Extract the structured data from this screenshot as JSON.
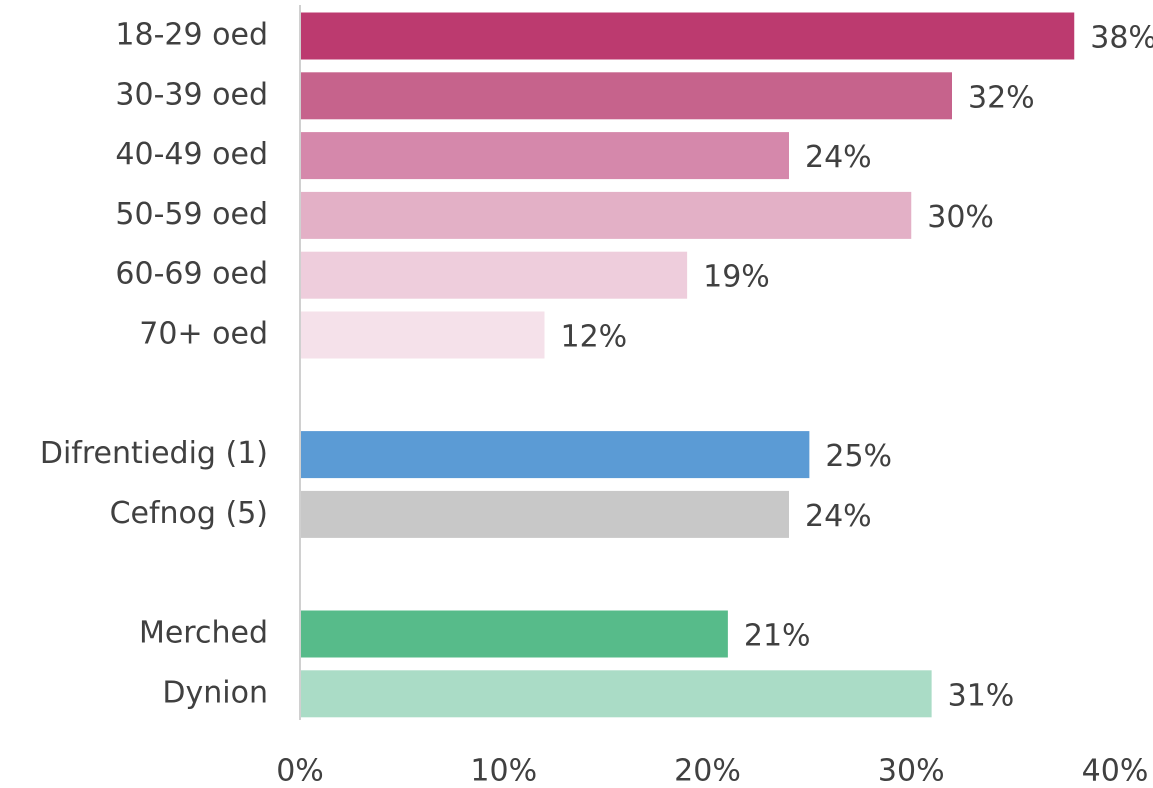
{
  "chart_data": {
    "type": "bar",
    "orientation": "horizontal",
    "categories": [
      "18-29 oed",
      "30-39 oed",
      "40-49 oed",
      "50-59 oed",
      "60-69 oed",
      "70+ oed",
      null,
      "Difrentiedig (1)",
      "Cefnog (5)",
      null,
      "Merched",
      "Dynion"
    ],
    "values": [
      38,
      32,
      24,
      30,
      19,
      12,
      null,
      25,
      24,
      null,
      21,
      31
    ],
    "value_labels": [
      "38%",
      "32%",
      "24%",
      "30%",
      "19%",
      "12%",
      null,
      "25%",
      "24%",
      null,
      "21%",
      "31%"
    ],
    "colors": [
      "#bc3a6f",
      "#c6638c",
      "#d588ab",
      "#e3b0c6",
      "#eecddc",
      "#f5e1ea",
      null,
      "#5b9bd5",
      "#c8c8c8",
      null,
      "#57bb8a",
      "#aadcc6"
    ],
    "xlim": [
      0,
      40
    ],
    "xticks": [
      {
        "value": 0,
        "label": "0%"
      },
      {
        "value": 10,
        "label": "10%"
      },
      {
        "value": 20,
        "label": "20%"
      },
      {
        "value": 30,
        "label": "30%"
      },
      {
        "value": 40,
        "label": "40%"
      }
    ],
    "grid": false
  }
}
